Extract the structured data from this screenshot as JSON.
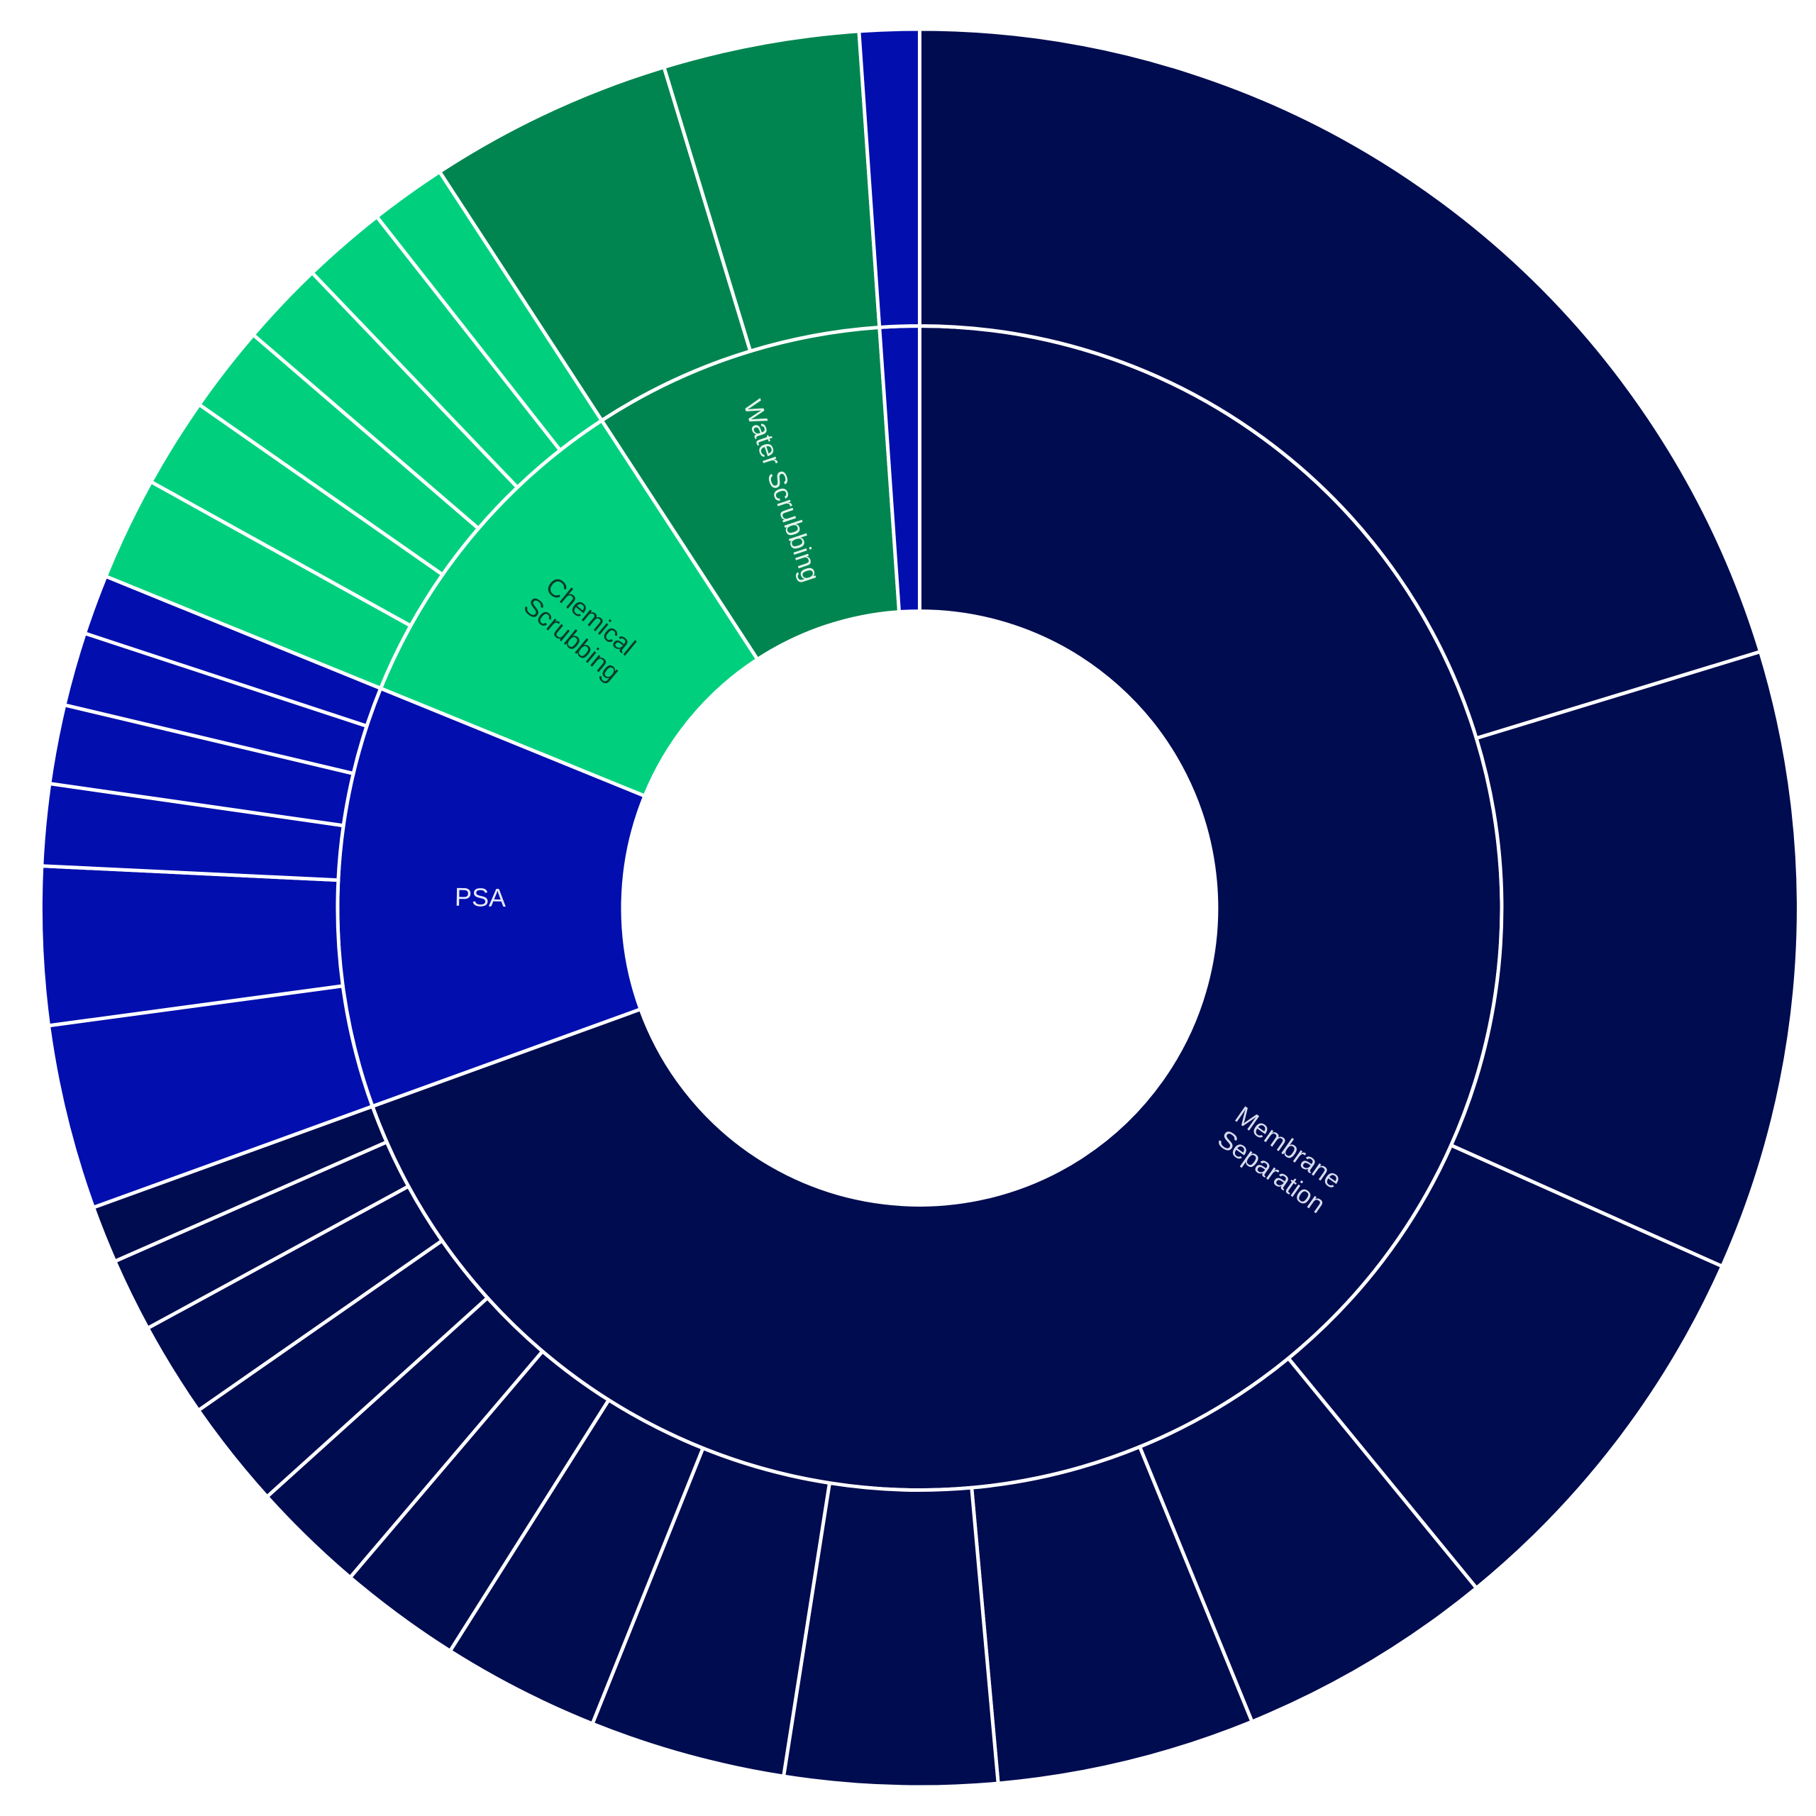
{
  "chart_data": {
    "type": "sunburst",
    "title": "",
    "colors": {
      "Membrane Separation": "#000c50",
      "PSA": "#020fae",
      "Chemical Scrubbing": "#00d07e",
      "Water Scrubbing": "#008550",
      "other": "#020fae",
      "separator": "#ffffff"
    },
    "label_colors": {
      "Membrane Separation": "#d8dcf0",
      "PSA": "#e8eaff",
      "Chemical Scrubbing": "#0b3b2a",
      "Water Scrubbing": "#e6f5ee"
    },
    "inner": [
      {
        "label": "Membrane Separation",
        "children": [
          20.3,
          11.4,
          7.4,
          4.75,
          4.75,
          3.9,
          3.6,
          2.9,
          2.25,
          2.1,
          2.0,
          1.75,
          1.35,
          1.05
        ]
      },
      {
        "label": "PSA",
        "children": [
          3.4,
          2.9,
          1.5,
          1.45,
          1.35,
          1.1
        ]
      },
      {
        "label": "Chemical Scrubbing",
        "children": [
          1.9,
          1.65,
          1.6,
          1.55,
          1.55,
          1.4
        ]
      },
      {
        "label": "Water Scrubbing",
        "children": [
          4.5,
          3.6
        ]
      },
      {
        "label": "",
        "children": [
          1.1
        ]
      }
    ]
  }
}
